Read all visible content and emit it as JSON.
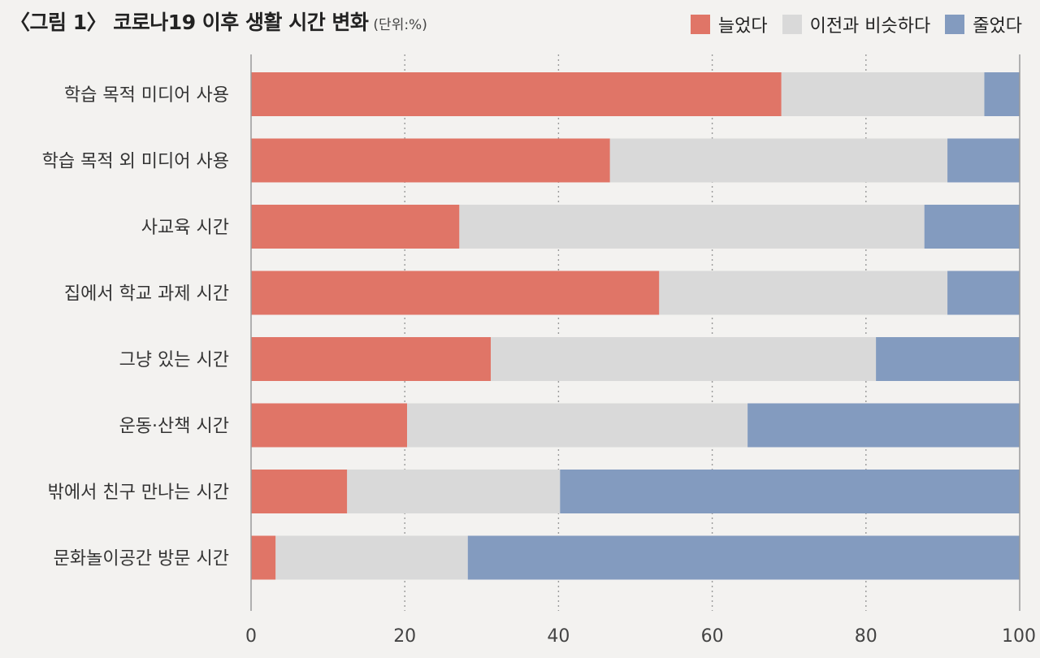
{
  "header": {
    "title": "〈그림 1〉 코로나19 이후 생활 시간 변화",
    "unit": "(단위:%)"
  },
  "colors": {
    "increased": "#e07567",
    "similar": "#d9d9d9",
    "decreased": "#839bbf",
    "gridline": "#9a9a9a",
    "axis": "#9a9a9a"
  },
  "chart_data": {
    "type": "bar",
    "orientation": "horizontal",
    "stacked": true,
    "title": "〈그림 1〉 코로나19 이후 생활 시간 변화",
    "unit": "(단위:%)",
    "categories": [
      "학습 목적 미디어 사용",
      "학습 목적 외 미디어 사용",
      "사교육 시간",
      "집에서 학교 과제 시간",
      "그냥 있는 시간",
      "운동·산책 시간",
      "밖에서 친구 만나는 시간",
      "문화놀이공간 방문 시간"
    ],
    "series": [
      {
        "name": "늘었다",
        "values": [
          69.0,
          46.7,
          27.1,
          53.1,
          31.2,
          20.3,
          12.5,
          3.2
        ]
      },
      {
        "name": "이전과 비슷하다",
        "values": [
          26.4,
          43.9,
          60.5,
          37.5,
          50.1,
          44.3,
          27.7,
          25.0
        ]
      },
      {
        "name": "줄었다",
        "values": [
          4.6,
          9.4,
          12.4,
          9.4,
          18.7,
          35.4,
          59.8,
          71.8
        ]
      }
    ],
    "xlim": [
      0,
      100
    ],
    "xticks": [
      "0",
      "20",
      "40",
      "60",
      "80",
      "100"
    ],
    "grid": "vertical dotted",
    "legend_position": "top-right"
  }
}
